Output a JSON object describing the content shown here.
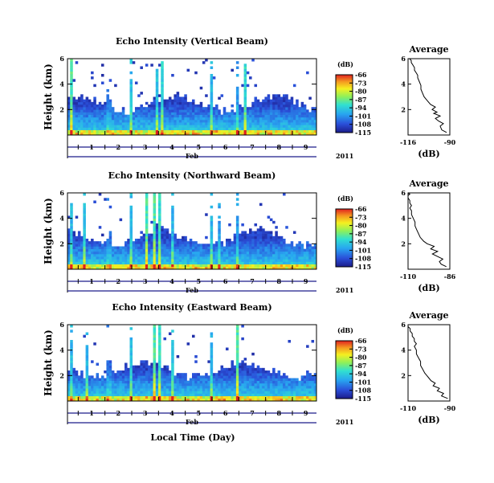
{
  "figure": {
    "xlabel": "Local Time (Day)",
    "month_label": "Feb",
    "year_label": "2011"
  },
  "chart_data": [
    {
      "type": "heatmap",
      "title": "Echo Intensity (Vertical Beam)",
      "ylabel": "Height (km)",
      "x_ticks": [
        "1",
        "2",
        "3",
        "4",
        "5",
        "6",
        "7",
        "8",
        "9"
      ],
      "xlim_days": [
        0.6,
        9.9
      ],
      "ylim": [
        0,
        6
      ],
      "y_ticks": [
        2,
        4,
        6
      ],
      "colorbar": {
        "unit": "(dB)",
        "ticks": [
          -66,
          -73,
          -80,
          -87,
          -94,
          -101,
          -108,
          -115
        ],
        "range": [
          -115,
          -66
        ]
      },
      "spikes": [
        0.75,
        2.15,
        2.95,
        3.92,
        4.12,
        5.95,
        6.98,
        7.25
      ],
      "profile": {
        "title": "Average",
        "xlabel": "(dB)",
        "xlim": [
          -116,
          -90
        ],
        "x_ticks": [
          -116,
          -90
        ],
        "ylim": [
          0,
          6
        ],
        "y_ticks": [
          2,
          4,
          6
        ],
        "x": [
          -92,
          -95,
          -96,
          -94,
          -97,
          -99,
          -96,
          -100,
          -98,
          -101,
          -99,
          -102,
          -104,
          -106,
          -107,
          -108,
          -108,
          -109,
          -110,
          -110,
          -111,
          -112,
          -112,
          -113,
          -114,
          -114,
          -115
        ],
        "y": [
          0.2,
          0.4,
          0.7,
          0.9,
          1.1,
          1.3,
          1.5,
          1.7,
          1.8,
          2.0,
          2.2,
          2.4,
          2.7,
          3.0,
          3.3,
          3.6,
          3.9,
          4.2,
          4.5,
          4.7,
          4.9,
          5.1,
          5.3,
          5.5,
          5.7,
          5.85,
          6.0
        ]
      }
    },
    {
      "type": "heatmap",
      "title": "Echo Intensity (Northward Beam)",
      "ylabel": "Height (km)",
      "x_ticks": [
        "1",
        "2",
        "3",
        "4",
        "5",
        "6",
        "7",
        "8",
        "9"
      ],
      "xlim_days": [
        0.6,
        9.9
      ],
      "ylim": [
        0,
        6
      ],
      "y_ticks": [
        2,
        4,
        6
      ],
      "colorbar": {
        "unit": "(dB)",
        "ticks": [
          -66,
          -73,
          -80,
          -87,
          -94,
          -101,
          -108,
          -115
        ],
        "range": [
          -115,
          -66
        ]
      },
      "spikes": [
        0.72,
        1.25,
        2.15,
        2.95,
        3.55,
        3.85,
        4.05,
        4.55,
        5.95,
        6.3,
        6.98
      ],
      "profile": {
        "title": "Average",
        "xlabel": "(dB)",
        "xlim": [
          -110,
          -86
        ],
        "x_ticks": [
          -110,
          -86
        ],
        "ylim": [
          0,
          6
        ],
        "y_ticks": [
          2,
          4,
          6
        ],
        "x": [
          -88,
          -91,
          -92,
          -90,
          -93,
          -96,
          -93,
          -97,
          -95,
          -99,
          -101,
          -103,
          -104,
          -105,
          -106,
          -106,
          -107,
          -108,
          -108,
          -109,
          -108,
          -109,
          -109,
          -110,
          -110,
          -109,
          -110
        ],
        "y": [
          0.2,
          0.4,
          0.6,
          0.8,
          1.0,
          1.2,
          1.4,
          1.6,
          1.8,
          2.0,
          2.2,
          2.5,
          2.8,
          3.1,
          3.4,
          3.7,
          4.0,
          4.3,
          4.6,
          4.8,
          5.0,
          5.2,
          5.4,
          5.6,
          5.8,
          5.9,
          6.0
        ]
      }
    },
    {
      "type": "heatmap",
      "title": "Echo Intensity (Eastward Beam)",
      "ylabel": "Height (km)",
      "x_ticks": [
        "1",
        "2",
        "3",
        "4",
        "5",
        "6",
        "7",
        "8",
        "9"
      ],
      "xlim_days": [
        0.6,
        9.9
      ],
      "ylim": [
        0,
        6
      ],
      "y_ticks": [
        2,
        4,
        6
      ],
      "colorbar": {
        "unit": "(dB)",
        "ticks": [
          -66,
          -73,
          -80,
          -87,
          -94,
          -101,
          -108,
          -115
        ],
        "range": [
          -115,
          -66
        ]
      },
      "spikes": [
        0.72,
        1.3,
        2.15,
        2.95,
        3.85,
        4.05,
        4.5,
        5.95,
        6.95
      ],
      "profile": {
        "title": "Average",
        "xlabel": "(dB)",
        "xlim": [
          -110,
          -90
        ],
        "x_ticks": [
          -110,
          -90
        ],
        "ylim": [
          0,
          6
        ],
        "y_ticks": [
          2,
          4,
          6
        ],
        "x": [
          -91,
          -94,
          -93,
          -96,
          -95,
          -98,
          -97,
          -99,
          -100,
          -101,
          -102,
          -103,
          -104,
          -104,
          -105,
          -106,
          -106,
          -107,
          -106,
          -107,
          -107,
          -108,
          -108,
          -109,
          -109,
          -110,
          -110
        ],
        "y": [
          0.2,
          0.4,
          0.6,
          0.8,
          1.0,
          1.2,
          1.4,
          1.6,
          1.8,
          2.0,
          2.2,
          2.5,
          2.8,
          3.1,
          3.4,
          3.7,
          4.0,
          4.3,
          4.5,
          4.7,
          4.9,
          5.1,
          5.3,
          5.5,
          5.7,
          5.85,
          6.0
        ]
      }
    }
  ]
}
